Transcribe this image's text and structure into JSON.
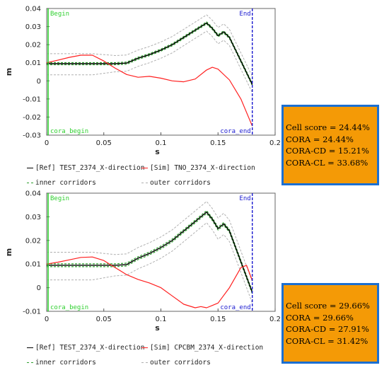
{
  "chart_data": [
    {
      "type": "line",
      "xlabel": "s",
      "ylabel": "m",
      "xlim": [
        0,
        0.2
      ],
      "ylim": [
        -0.03,
        0.04
      ],
      "x_ticks": [
        "0",
        "0.05",
        "0.1",
        "0.15",
        "0.2"
      ],
      "y_ticks": [
        "0.04",
        "0.03",
        "0.02",
        "0.01",
        "0",
        "-0.01",
        "-0.02",
        "-0.03"
      ],
      "annotations": {
        "begin": "Begin",
        "end": "End",
        "begin_marker": "cora_begin",
        "end_marker": "cora_end"
      },
      "begin_x": 0.0,
      "end_x": 0.18,
      "series": [
        {
          "name": "[Ref]  TEST_2374_X-direction",
          "color": "#000000",
          "x": [
            0,
            0.02,
            0.04,
            0.06,
            0.07,
            0.08,
            0.09,
            0.1,
            0.11,
            0.12,
            0.13,
            0.14,
            0.145,
            0.15,
            0.155,
            0.16,
            0.17,
            0.18
          ],
          "y": [
            0.0095,
            0.0095,
            0.0095,
            0.0095,
            0.0098,
            0.0125,
            0.0145,
            0.017,
            0.02,
            0.024,
            0.028,
            0.032,
            0.029,
            0.025,
            0.027,
            0.024,
            0.011,
            -0.002
          ]
        },
        {
          "name": "[Sim]  TNO_2374_X-direction",
          "color": "#ff2020",
          "x": [
            0,
            0.01,
            0.02,
            0.03,
            0.04,
            0.05,
            0.06,
            0.07,
            0.08,
            0.09,
            0.1,
            0.11,
            0.12,
            0.13,
            0.14,
            0.145,
            0.15,
            0.16,
            0.17,
            0.18
          ],
          "y": [
            0.01,
            0.0115,
            0.013,
            0.0142,
            0.0142,
            0.011,
            0.007,
            0.0035,
            0.002,
            0.0025,
            0.0015,
            0,
            -0.0005,
            0.001,
            0.006,
            0.0075,
            0.0065,
            0.0005,
            -0.01,
            -0.025
          ]
        }
      ],
      "legend": {
        "ref": "[Ref]  TEST_2374_X-direction",
        "sim": "[Sim]  TNO_2374_X-direction",
        "inner": "inner corridors",
        "outer": "outer corridors"
      },
      "scores": [
        "Cell score = 24.44%",
        "CORA = 24.44%",
        "CORA-CD = 15.21%",
        "CORA-CL = 33.68%"
      ]
    },
    {
      "type": "line",
      "xlabel": "s",
      "ylabel": "m",
      "xlim": [
        0,
        0.2
      ],
      "ylim": [
        -0.01,
        0.04
      ],
      "x_ticks": [
        "0",
        "0.05",
        "0.1",
        "0.15",
        "0.2"
      ],
      "y_ticks": [
        "0.04",
        "0.03",
        "0.02",
        "0.01",
        "0",
        "-0.01"
      ],
      "annotations": {
        "begin": "Begin",
        "end": "End",
        "begin_marker": "cora_begin",
        "end_marker": "cora_end"
      },
      "begin_x": 0.0,
      "end_x": 0.18,
      "series": [
        {
          "name": "[Ref]  TEST_2374_X-direction",
          "color": "#000000",
          "x": [
            0,
            0.02,
            0.04,
            0.06,
            0.07,
            0.08,
            0.09,
            0.1,
            0.11,
            0.12,
            0.13,
            0.14,
            0.145,
            0.15,
            0.155,
            0.16,
            0.17,
            0.18
          ],
          "y": [
            0.0095,
            0.0095,
            0.0095,
            0.0095,
            0.0098,
            0.0125,
            0.0145,
            0.017,
            0.02,
            0.024,
            0.028,
            0.032,
            0.029,
            0.025,
            0.027,
            0.024,
            0.011,
            -0.002
          ]
        },
        {
          "name": "[Sim]  CPCBM_2374_X-direction",
          "color": "#ff2020",
          "x": [
            0,
            0.01,
            0.02,
            0.03,
            0.04,
            0.05,
            0.06,
            0.07,
            0.08,
            0.09,
            0.1,
            0.11,
            0.12,
            0.13,
            0.135,
            0.14,
            0.145,
            0.15,
            0.16,
            0.17,
            0.175,
            0.18
          ],
          "y": [
            0.01,
            0.0108,
            0.0118,
            0.0128,
            0.013,
            0.0115,
            0.0085,
            0.0055,
            0.0035,
            0.002,
            0,
            -0.0035,
            -0.007,
            -0.0085,
            -0.008,
            -0.0085,
            -0.0075,
            -0.0065,
            0,
            0.0085,
            0.0095,
            0.003
          ]
        }
      ],
      "legend": {
        "ref": "[Ref]  TEST_2374_X-direction",
        "sim": "[Sim]  CPCBM_2374_X-direction",
        "inner": "inner corridors",
        "outer": "outer corridors"
      },
      "scores": [
        "Cell score = 29.66%",
        "CORA = 29.66%",
        "CORA-CD = 27.91%",
        "CORA-CL = 31.42%"
      ]
    }
  ],
  "colors": {
    "ref": "#000000",
    "sim": "#ff2020",
    "inner": "#2ea02e",
    "outer": "#b0b0b0",
    "begin": "#30d030",
    "end": "#1a1ad0",
    "score_bg": "#f49a06",
    "score_border": "#1b6fd2"
  }
}
